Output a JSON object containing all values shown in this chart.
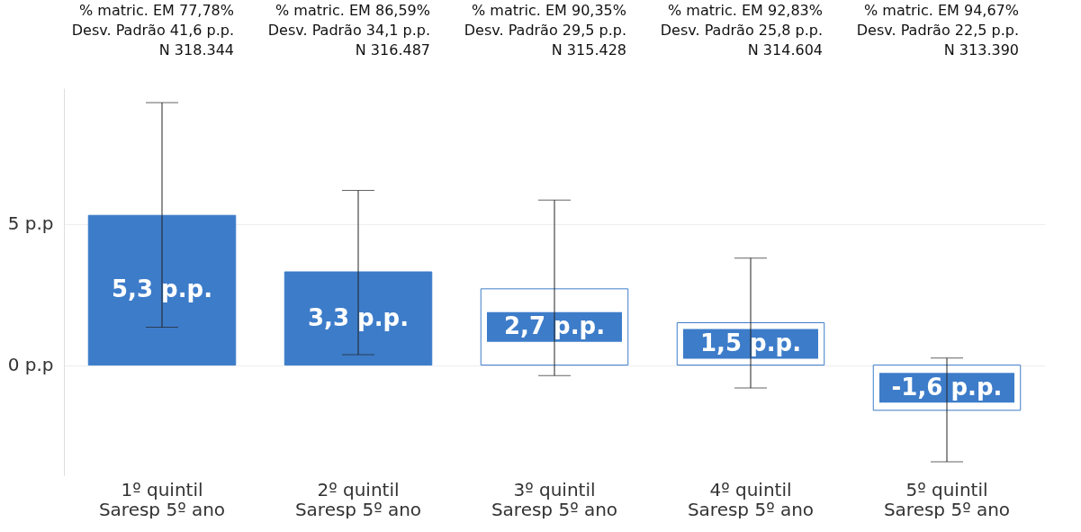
{
  "chart_data": {
    "type": "bar",
    "categories": [
      "1º quintil\nSaresp 5º ano",
      "2º quintil\nSaresp 5º ano",
      "3º quintil\nSaresp 5º ano",
      "4º quintil\nSaresp 5º ano",
      "5º quintil\nSaresp 5º ano"
    ],
    "values": [
      5.3,
      3.3,
      2.7,
      1.5,
      -1.6
    ],
    "value_labels": [
      "5,3 p.p.",
      "3,3 p.p.",
      "2,7 p.p.",
      "1,5 p.p.",
      "-1,6 p.p."
    ],
    "errors": [
      [
        1.34,
        9.29
      ],
      [
        0.37,
        6.18
      ],
      [
        -0.37,
        5.84
      ],
      [
        -0.81,
        3.79
      ],
      [
        -3.42,
        0.25
      ]
    ],
    "color": "#3d7cc9",
    "colors": [
      "#3d7cc9",
      "#3d7cc9",
      "#ffffff",
      "#ffffff",
      "#ffffff"
    ],
    "ylim": [
      -3.9,
      9.8
    ],
    "yticks": [
      {
        "value": 0,
        "label": "0 p.p"
      },
      {
        "value": 5,
        "label": "5 p.p"
      }
    ],
    "grid": "y",
    "annotations": [
      "% matric. EM 77,78%",
      "Desv. Padrão 41,6 p.p.",
      "N 318.344",
      "% matric. EM 86,59%",
      "Desv. Padrão 34,1 p.p.",
      "N 316.487",
      "% matric. EM 90,35%",
      "Desv. Padrão 29,5 p.p.",
      "N 315.428",
      "% matric. EM 92,83%",
      "Desv. Padrão 25,8 p.p.",
      "N 314.604",
      "% matric. EM 94,67%",
      "Desv. Padrão 22,5 p.p.",
      "N 313.390"
    ]
  }
}
